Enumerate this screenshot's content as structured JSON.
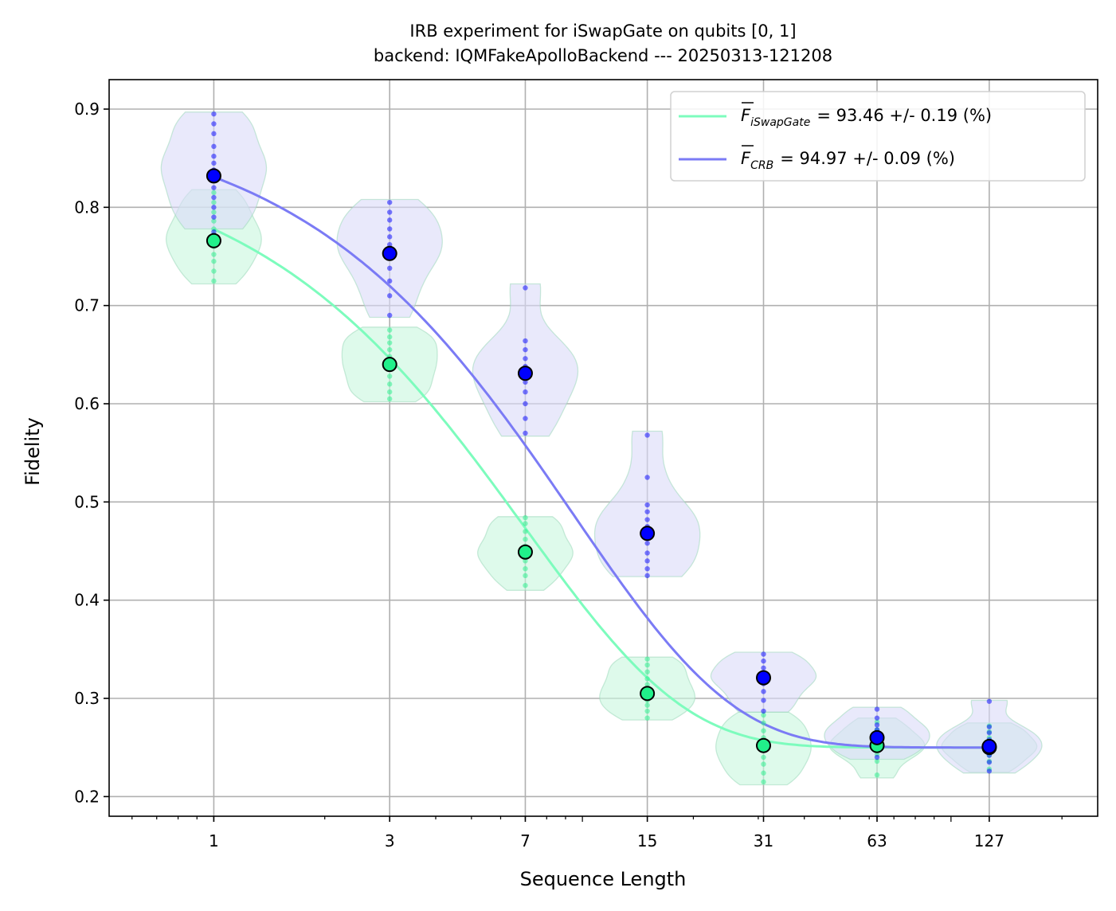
{
  "chart_data": {
    "type": "line",
    "title": "IRB experiment for iSwapGate on qubits [0, 1]",
    "subtitle": "backend: IQMFakeApolloBackend --- 20250313-121208",
    "xlabel": "Sequence Length",
    "ylabel": "Fidelity",
    "x_scale": "log",
    "xlim": [
      0.52,
      250
    ],
    "ylim": [
      0.18,
      0.93
    ],
    "x_ticks": [
      1,
      3,
      7,
      15,
      31,
      63,
      127
    ],
    "x_tick_labels": [
      "1",
      "3",
      "7",
      "15",
      "31",
      "63",
      "127"
    ],
    "y_ticks": [
      0.2,
      0.3,
      0.4,
      0.5,
      0.6,
      0.7,
      0.8,
      0.9
    ],
    "y_tick_labels": [
      "0.2",
      "0.3",
      "0.4",
      "0.5",
      "0.6",
      "0.7",
      "0.8",
      "0.9"
    ],
    "grid": true,
    "legend_position": "top-right",
    "series": [
      {
        "name": "iSwapGate",
        "legend_label": "= 93.46 +/- 0.19 (%)",
        "color": "#7dfcbd",
        "marker_color": "#21f08a",
        "violin_color": "#c8f7de",
        "decay_p": 0.8665,
        "asymptote": 0.25,
        "amplitude": 0.609,
        "x": [
          1,
          3,
          7,
          15,
          31,
          63,
          127
        ],
        "mean": [
          0.766,
          0.64,
          0.449,
          0.305,
          0.252,
          0.252,
          0.25
        ],
        "samples": [
          [
            0.725,
            0.735,
            0.745,
            0.752,
            0.76,
            0.766,
            0.772,
            0.778,
            0.786,
            0.795,
            0.805,
            0.815
          ],
          [
            0.605,
            0.612,
            0.62,
            0.628,
            0.635,
            0.642,
            0.648,
            0.655,
            0.662,
            0.668,
            0.675
          ],
          [
            0.415,
            0.425,
            0.432,
            0.44,
            0.445,
            0.45,
            0.455,
            0.462,
            0.47,
            0.478,
            0.484
          ],
          [
            0.28,
            0.287,
            0.293,
            0.298,
            0.303,
            0.308,
            0.314,
            0.32,
            0.327,
            0.334,
            0.34
          ],
          [
            0.215,
            0.224,
            0.233,
            0.24,
            0.247,
            0.253,
            0.26,
            0.267,
            0.275,
            0.283
          ],
          [
            0.222,
            0.236,
            0.243,
            0.248,
            0.252,
            0.256,
            0.261,
            0.268,
            0.276
          ],
          [
            0.228,
            0.236,
            0.242,
            0.247,
            0.251,
            0.255,
            0.26,
            0.266,
            0.272
          ]
        ],
        "violin_range": [
          [
            0.722,
            0.818
          ],
          [
            0.602,
            0.678
          ],
          [
            0.41,
            0.485
          ],
          [
            0.278,
            0.342
          ],
          [
            0.212,
            0.286
          ],
          [
            0.219,
            0.28
          ],
          [
            0.225,
            0.275
          ]
        ],
        "violin_width_scale": 0.76
      },
      {
        "name": "CRB",
        "legend_label": "= 94.97 +/- 0.09 (%)",
        "color": "#7b7bf5",
        "marker_color": "#0000ff",
        "violin_color": "#dadaf8",
        "decay_p": 0.8995,
        "asymptote": 0.25,
        "amplitude": 0.6457,
        "x": [
          1,
          3,
          7,
          15,
          31,
          63,
          127
        ],
        "mean": [
          0.832,
          0.753,
          0.631,
          0.468,
          0.321,
          0.26,
          0.251
        ],
        "samples": [
          [
            0.775,
            0.79,
            0.8,
            0.81,
            0.82,
            0.83,
            0.838,
            0.845,
            0.852,
            0.862,
            0.875,
            0.885,
            0.895
          ],
          [
            0.69,
            0.71,
            0.725,
            0.738,
            0.748,
            0.755,
            0.762,
            0.77,
            0.778,
            0.787,
            0.795,
            0.805
          ],
          [
            0.57,
            0.585,
            0.6,
            0.612,
            0.622,
            0.63,
            0.638,
            0.646,
            0.655,
            0.664,
            0.718
          ],
          [
            0.425,
            0.432,
            0.44,
            0.448,
            0.458,
            0.468,
            0.475,
            0.482,
            0.49,
            0.497,
            0.525,
            0.568
          ],
          [
            0.287,
            0.298,
            0.307,
            0.315,
            0.32,
            0.325,
            0.331,
            0.338,
            0.345
          ],
          [
            0.24,
            0.247,
            0.253,
            0.258,
            0.263,
            0.268,
            0.273,
            0.28,
            0.289
          ],
          [
            0.226,
            0.235,
            0.242,
            0.248,
            0.253,
            0.258,
            0.265,
            0.271,
            0.297
          ]
        ],
        "violin_range": [
          [
            0.778,
            0.897
          ],
          [
            0.688,
            0.808
          ],
          [
            0.567,
            0.722
          ],
          [
            0.424,
            0.572
          ],
          [
            0.286,
            0.347
          ],
          [
            0.238,
            0.291
          ],
          [
            0.224,
            0.298
          ]
        ],
        "violin_width_scale": 0.84
      }
    ]
  }
}
